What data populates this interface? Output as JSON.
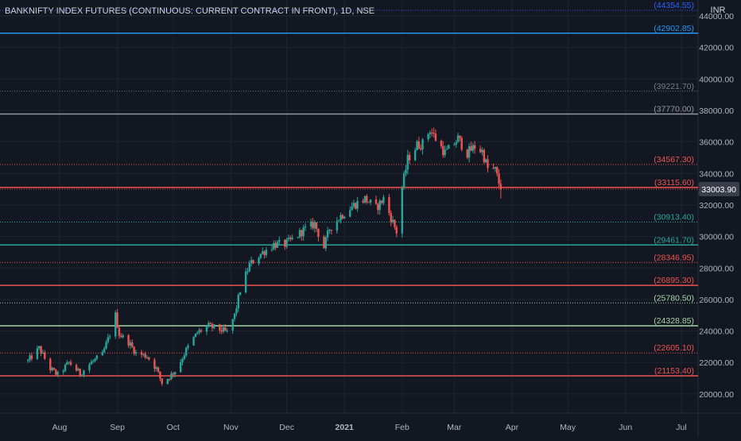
{
  "header": {
    "title": "BANKNIFTY INDEX FUTURES (CONTINUOUS: CURRENT CONTRACT IN FRONT), 1D, NSE",
    "currency": "INR"
  },
  "colors": {
    "background": "#131722",
    "up": "#26a69a",
    "down": "#ef5350",
    "axis_text": "#b2b5be",
    "grid": "#1f2430"
  },
  "chart_data": {
    "type": "candlestick",
    "title": "BANKNIFTY INDEX FUTURES (CONTINUOUS: CURRENT CONTRACT IN FRONT), 1D, NSE",
    "currency": "INR",
    "ylim": [
      19000,
      45000
    ],
    "y_ticks": [
      "20000.00",
      "22000.00",
      "24000.00",
      "26000.00",
      "28000.00",
      "30000.00",
      "32000.00",
      "34000.00",
      "36000.00",
      "38000.00",
      "40000.00",
      "42000.00",
      "44000.00"
    ],
    "x_ticks": [
      "Aug",
      "Sep",
      "Oct",
      "Nov",
      "Dec",
      "2021",
      "Feb",
      "Mar",
      "Apr",
      "May",
      "Jun",
      "Jul"
    ],
    "last_price": "33003.90",
    "levels": [
      {
        "label": "(44354.55)",
        "value": 44354.55,
        "color": "#2962ff",
        "style": "dotted"
      },
      {
        "label": "(42902.85)",
        "value": 42902.85,
        "color": "#2196f3",
        "style": "solid"
      },
      {
        "label": "(39221.70)",
        "value": 39221.7,
        "color": "#787b86",
        "style": "dotted"
      },
      {
        "label": "(37770.00)",
        "value": 37770.0,
        "color": "#9598a1",
        "style": "solid"
      },
      {
        "label": "(34567.30)",
        "value": 34567.3,
        "color": "#ef5350",
        "style": "dotted"
      },
      {
        "label": "(33115.60)",
        "value": 33115.6,
        "color": "#ef5350",
        "style": "solid"
      },
      {
        "label": "(30913.40)",
        "value": 30913.4,
        "color": "#26a69a",
        "style": "dotted"
      },
      {
        "label": "(29461.70)",
        "value": 29461.7,
        "color": "#26a69a",
        "style": "solid"
      },
      {
        "label": "(28346.95)",
        "value": 28346.95,
        "color": "#ef5350",
        "style": "dotted"
      },
      {
        "label": "(26895.30)",
        "value": 26895.3,
        "color": "#ef5350",
        "style": "solid"
      },
      {
        "label": "(25780.50)",
        "value": 25780.5,
        "color": "#a5d6a7",
        "style": "dotted"
      },
      {
        "label": "(24328.85)",
        "value": 24328.85,
        "color": "#a5d6a7",
        "style": "solid"
      },
      {
        "label": "(22605.10)",
        "value": 22605.1,
        "color": "#ef5350",
        "style": "dotted"
      },
      {
        "label": "(21153.40)",
        "value": 21153.4,
        "color": "#ef5350",
        "style": "solid"
      }
    ],
    "price_path": [
      {
        "date": "2020-07-15",
        "close": 22100
      },
      {
        "date": "2020-07-21",
        "close": 22900
      },
      {
        "date": "2020-07-27",
        "close": 21600
      },
      {
        "date": "2020-07-31",
        "close": 21200
      },
      {
        "date": "2020-08-06",
        "close": 22000
      },
      {
        "date": "2020-08-12",
        "close": 21300
      },
      {
        "date": "2020-08-18",
        "close": 22000
      },
      {
        "date": "2020-08-24",
        "close": 22500
      },
      {
        "date": "2020-08-28",
        "close": 23800
      },
      {
        "date": "2020-08-31",
        "close": 25000
      },
      {
        "date": "2020-09-02",
        "close": 23800
      },
      {
        "date": "2020-09-07",
        "close": 23300
      },
      {
        "date": "2020-09-11",
        "close": 22600
      },
      {
        "date": "2020-09-17",
        "close": 22400
      },
      {
        "date": "2020-09-22",
        "close": 21600
      },
      {
        "date": "2020-09-25",
        "close": 20700
      },
      {
        "date": "2020-09-29",
        "close": 21100
      },
      {
        "date": "2020-10-03",
        "close": 21600
      },
      {
        "date": "2020-10-08",
        "close": 22800
      },
      {
        "date": "2020-10-14",
        "close": 23900
      },
      {
        "date": "2020-10-20",
        "close": 24300
      },
      {
        "date": "2020-10-26",
        "close": 24100
      },
      {
        "date": "2020-10-30",
        "close": 23900
      },
      {
        "date": "2020-11-03",
        "close": 25000
      },
      {
        "date": "2020-11-06",
        "close": 26600
      },
      {
        "date": "2020-11-11",
        "close": 28200
      },
      {
        "date": "2020-11-17",
        "close": 28900
      },
      {
        "date": "2020-11-24",
        "close": 29500
      },
      {
        "date": "2020-11-30",
        "close": 29500
      },
      {
        "date": "2020-12-04",
        "close": 29800
      },
      {
        "date": "2020-12-10",
        "close": 30400
      },
      {
        "date": "2020-12-16",
        "close": 30800
      },
      {
        "date": "2020-12-21",
        "close": 29300
      },
      {
        "date": "2020-12-24",
        "close": 30500
      },
      {
        "date": "2020-12-30",
        "close": 31300
      },
      {
        "date": "2021-01-06",
        "close": 32000
      },
      {
        "date": "2021-01-12",
        "close": 32400
      },
      {
        "date": "2021-01-18",
        "close": 31800
      },
      {
        "date": "2021-01-22",
        "close": 32400
      },
      {
        "date": "2021-01-27",
        "close": 30900
      },
      {
        "date": "2021-01-29",
        "close": 30300
      },
      {
        "date": "2021-02-01",
        "close": 33100
      },
      {
        "date": "2021-02-04",
        "close": 34900
      },
      {
        "date": "2021-02-09",
        "close": 35800
      },
      {
        "date": "2021-02-12",
        "close": 35900
      },
      {
        "date": "2021-02-16",
        "close": 36800
      },
      {
        "date": "2021-02-19",
        "close": 36200
      },
      {
        "date": "2021-02-24",
        "close": 35300
      },
      {
        "date": "2021-02-26",
        "close": 35500
      },
      {
        "date": "2021-03-03",
        "close": 36200
      },
      {
        "date": "2021-03-08",
        "close": 35300
      },
      {
        "date": "2021-03-12",
        "close": 35700
      },
      {
        "date": "2021-03-16",
        "close": 35400
      },
      {
        "date": "2021-03-19",
        "close": 34300
      },
      {
        "date": "2021-03-23",
        "close": 34200
      },
      {
        "date": "2021-03-26",
        "close": 33004
      }
    ]
  }
}
